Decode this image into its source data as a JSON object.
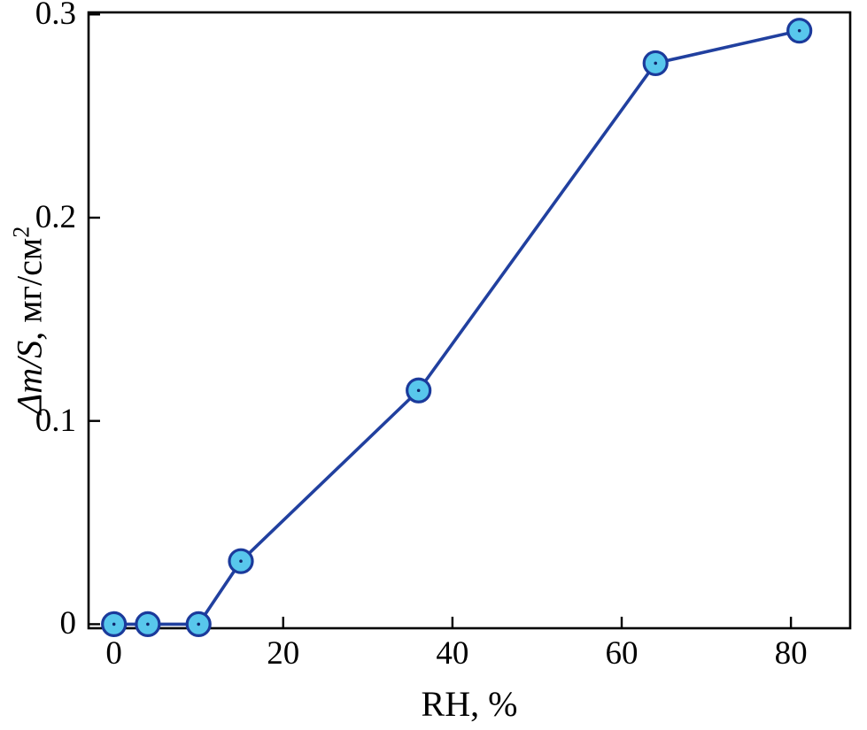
{
  "chart_data": {
    "type": "line",
    "title": "",
    "xlabel": "RH, %",
    "ylabel": "Δm/S, мг/см²",
    "ylabel_parts": {
      "italic": "Δm/S",
      "rest": ", мг/см",
      "sup": "2"
    },
    "x": [
      0,
      4,
      10,
      15,
      36,
      64,
      81
    ],
    "y": [
      0,
      0,
      0,
      0.031,
      0.115,
      0.276,
      0.292
    ],
    "xlim": [
      -3,
      87
    ],
    "ylim": [
      -0.002,
      0.301
    ],
    "xticks": [
      0,
      20,
      40,
      60,
      80
    ],
    "yticks": [
      0,
      0.1,
      0.2,
      0.3
    ],
    "xtick_labels": [
      "0",
      "20",
      "40",
      "60",
      "80"
    ],
    "ytick_labels": [
      "0",
      "0.1",
      "0.2",
      "0.3"
    ],
    "grid": false,
    "legend": "none",
    "line_color": "#21409f",
    "marker_fill": "#58c7ec",
    "marker_edge": "#1b3a9b",
    "marker_center_dot": "#10266b",
    "axis_color": "#000000"
  }
}
